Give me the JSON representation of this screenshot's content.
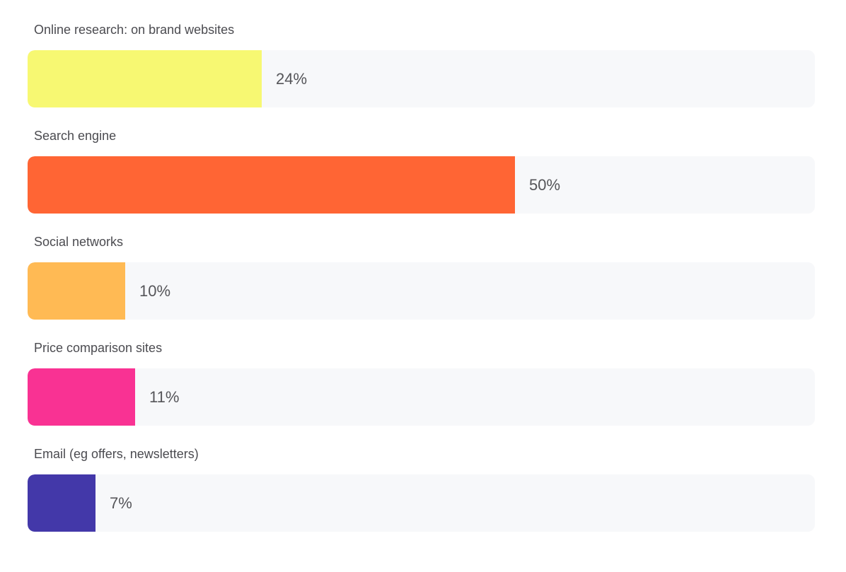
{
  "chart_data": {
    "type": "bar",
    "orientation": "horizontal",
    "grid": false,
    "categories": [
      "Online research: on brand websites",
      "Search engine",
      "Social networks",
      "Price comparison sites",
      "Email (eg offers, newsletters)"
    ],
    "values": [
      24,
      50,
      10,
      11,
      7
    ],
    "value_labels": [
      "24%",
      "50%",
      "10%",
      "11%",
      "7%"
    ],
    "colors": [
      "#f7f872",
      "#ff6534",
      "#ffba54",
      "#f93293",
      "#4338a9"
    ],
    "track_color": "#f7f8fa",
    "xlim": [
      0,
      80.8
    ]
  }
}
